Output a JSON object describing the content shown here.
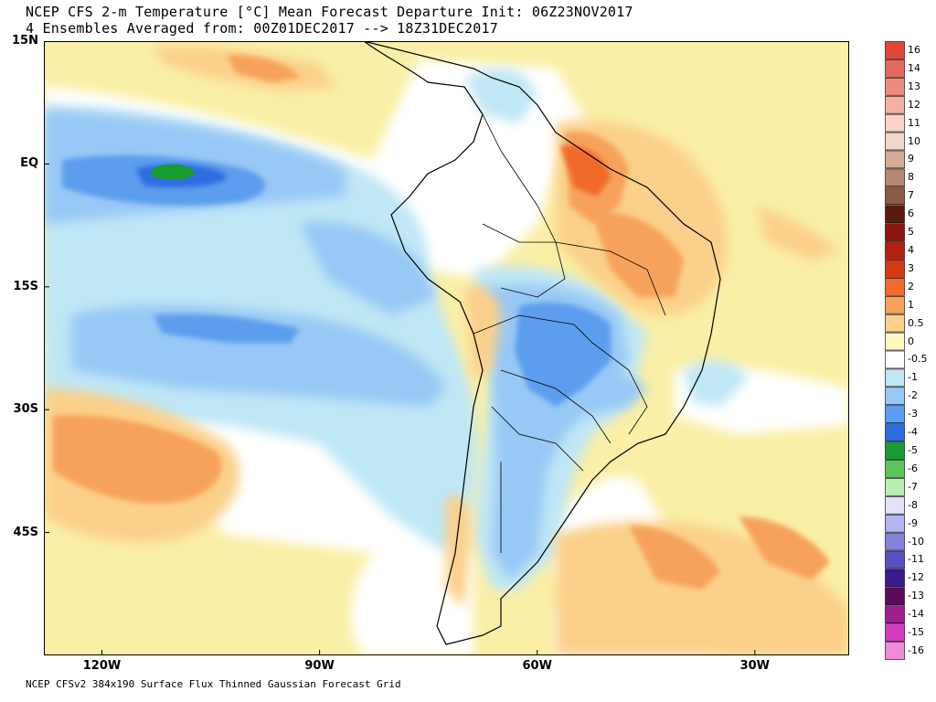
{
  "header": {
    "title_line1": "NCEP CFS 2-m Temperature [°C] Mean Forecast Departure Init: 06Z23NOV2017",
    "title_line2": "4 Ensembles Averaged from: 00Z01DEC2017 --> 18Z31DEC2017"
  },
  "footer": {
    "text": "NCEP CFSv2 384x190 Surface Flux Thinned Gaussian Forecast Grid"
  },
  "map": {
    "lat_range": [
      -60,
      15
    ],
    "lon_range": [
      -128,
      -17
    ],
    "lat_labels": [
      {
        "value": 15,
        "text": "15N"
      },
      {
        "value": 0,
        "text": "EQ"
      },
      {
        "value": -15,
        "text": "15S"
      },
      {
        "value": -30,
        "text": "30S"
      },
      {
        "value": -45,
        "text": "45S"
      }
    ],
    "lon_labels": [
      {
        "value": -120,
        "text": "120W"
      },
      {
        "value": -90,
        "text": "90W"
      },
      {
        "value": -60,
        "text": "60W"
      },
      {
        "value": -30,
        "text": "30W"
      }
    ],
    "colors": {
      "ocean_background": "#faefa6",
      "land_outline": "#000000"
    }
  },
  "colorbar": {
    "levels": [
      {
        "label": "16",
        "color": "#e0473a"
      },
      {
        "label": "14",
        "color": "#e66a5b"
      },
      {
        "label": "13",
        "color": "#ec8c7e"
      },
      {
        "label": "12",
        "color": "#f3b0a5"
      },
      {
        "label": "11",
        "color": "#fad3cb"
      },
      {
        "label": "10",
        "color": "#f0d8c9"
      },
      {
        "label": "9",
        "color": "#d5ab95"
      },
      {
        "label": "8",
        "color": "#b88770"
      },
      {
        "label": "7",
        "color": "#8c5a43"
      },
      {
        "label": "6",
        "color": "#5a1a0e"
      },
      {
        "label": "5",
        "color": "#8a160f"
      },
      {
        "label": "4",
        "color": "#b4200f"
      },
      {
        "label": "3",
        "color": "#d63a12"
      },
      {
        "label": "2",
        "color": "#f06b2c"
      },
      {
        "label": "1",
        "color": "#f7a25c"
      },
      {
        "label": "0.5",
        "color": "#fbd08a"
      },
      {
        "label": "0",
        "color": "#fff7bd"
      },
      {
        "label": "-0.5",
        "color": "#ffffff"
      },
      {
        "label": "-1",
        "color": "#bfe7f5"
      },
      {
        "label": "-2",
        "color": "#98c8f5"
      },
      {
        "label": "-3",
        "color": "#5c9ded"
      },
      {
        "label": "-4",
        "color": "#2d6ce0"
      },
      {
        "label": "-5",
        "color": "#189b31"
      },
      {
        "label": "-6",
        "color": "#5cc45c"
      },
      {
        "label": "-7",
        "color": "#b8eeb0"
      },
      {
        "label": "-8",
        "color": "#e2e2fa"
      },
      {
        "label": "-9",
        "color": "#b4b4ee"
      },
      {
        "label": "-10",
        "color": "#8282dc"
      },
      {
        "label": "-11",
        "color": "#5a50c4"
      },
      {
        "label": "-12",
        "color": "#3a1a8c"
      },
      {
        "label": "-13",
        "color": "#5c0a5c"
      },
      {
        "label": "-14",
        "color": "#a01e8c"
      },
      {
        "label": "-15",
        "color": "#d23cbc"
      },
      {
        "label": "-16",
        "color": "#f28ad8"
      }
    ]
  }
}
